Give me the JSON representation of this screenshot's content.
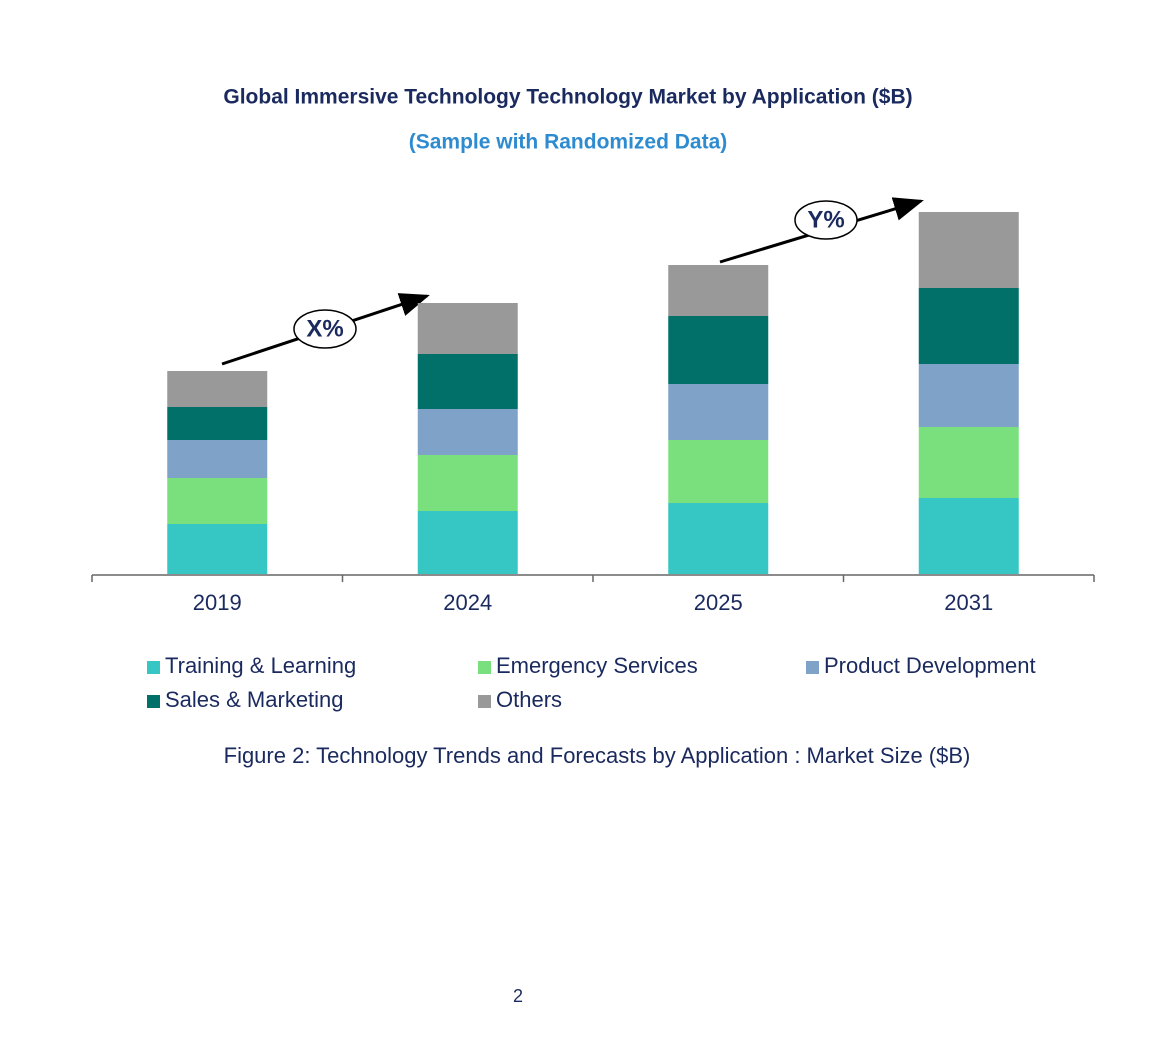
{
  "chart_data": {
    "type": "stacked-bar",
    "title": "Global Immersive Technology Technology Market by Application ($B)",
    "subtitle": "(Sample with Randomized Data)",
    "categories": [
      "2019",
      "2024",
      "2025",
      "2031"
    ],
    "series": [
      {
        "name": "Training & Learning",
        "color": "#36c7c4",
        "values": [
          50,
          63,
          71,
          76
        ]
      },
      {
        "name": "Emergency Services",
        "color": "#7ae07e",
        "values": [
          46,
          56,
          63,
          71
        ]
      },
      {
        "name": "Product Development",
        "color": "#7fa3c8",
        "values": [
          38,
          46,
          56,
          63
        ]
      },
      {
        "name": "Sales & Marketing",
        "color": "#007068",
        "values": [
          33,
          55,
          68,
          76
        ]
      },
      {
        "name": "Others",
        "color": "#999999",
        "values": [
          36,
          51,
          51,
          76
        ]
      }
    ],
    "ylim": [
      0,
      400
    ],
    "annotations": [
      "X%",
      "Y%"
    ],
    "caption": "Figure 2: Technology Trends and Forecasts by Application : Market Size ($B)",
    "page_number": "2"
  }
}
